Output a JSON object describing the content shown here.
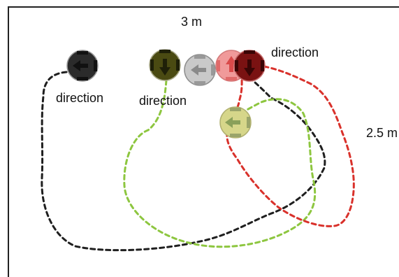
{
  "labels": {
    "width_measure": "3 m",
    "height_measure": "2.5 m",
    "direction_black": "direction",
    "direction_olive": "direction",
    "direction_red": "direction"
  },
  "colors": {
    "black_path": "#1f1f1f",
    "green_path": "#8dc63f",
    "red_path": "#d9312b",
    "marker_black": "#2b2b2b",
    "marker_olive": "#4a4a12",
    "marker_gray": "#c9c9c9",
    "marker_pink": "#f09a9a",
    "marker_darkred": "#7a1212",
    "marker_yellowgreen": "#d6d68a"
  },
  "icons": [
    "arrow-left-icon",
    "arrow-down-icon",
    "arrow-up-icon"
  ]
}
